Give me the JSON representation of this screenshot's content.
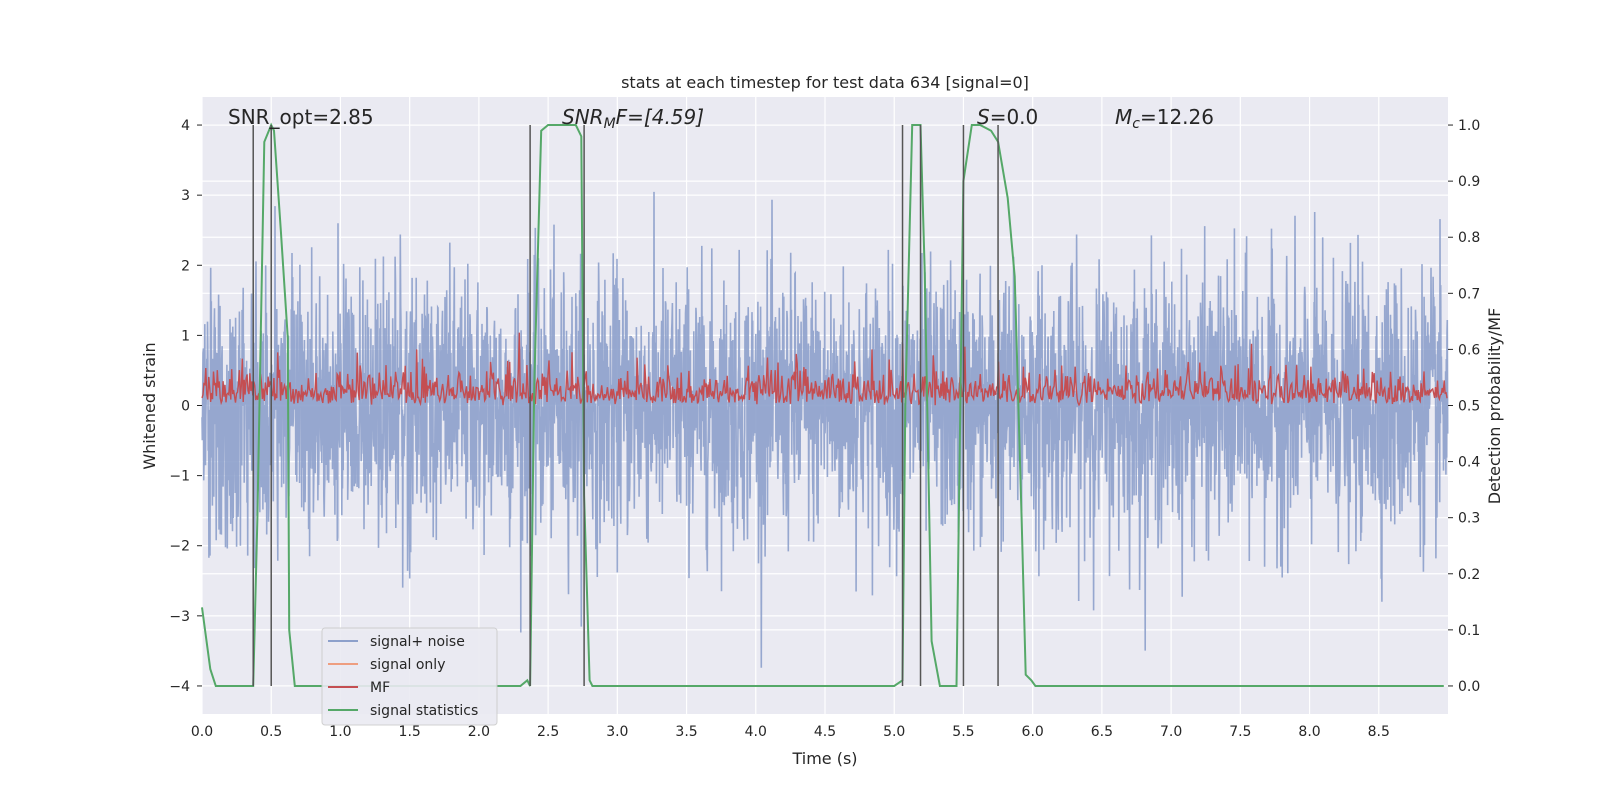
{
  "chart_data": {
    "type": "line",
    "title": "stats at each timestep for test data 634 [signal=0]",
    "xlabel": "Time (s)",
    "ylabel": "Whitened strain",
    "y2label": "Detection probability/MF",
    "xlim": [
      0.0,
      9.0
    ],
    "ylim": [
      -4.4,
      4.4
    ],
    "y2lim": [
      -0.05,
      1.05
    ],
    "xticks": [
      "0.0",
      "0.5",
      "1.0",
      "1.5",
      "2.0",
      "2.5",
      "3.0",
      "3.5",
      "4.0",
      "4.5",
      "5.0",
      "5.5",
      "6.0",
      "6.5",
      "7.0",
      "7.5",
      "8.0",
      "8.5"
    ],
    "yticks": [
      "4",
      "3",
      "2",
      "1",
      "0",
      "−1",
      "−2",
      "−3",
      "−4"
    ],
    "y2ticks": [
      "1.0",
      "0.9",
      "0.8",
      "0.7",
      "0.6",
      "0.5",
      "0.4",
      "0.3",
      "0.2",
      "0.1",
      "0.0"
    ],
    "grid": true,
    "legend_position": "lower-left",
    "annotations": {
      "snr_opt": "SNR_opt=2.85",
      "snr_mf_main": "SNR",
      "snr_mf_sub": "M",
      "snr_mf_rest": "F=[4.59]",
      "s_main": "S",
      "s_rest": "=0.0",
      "mc_main": "M",
      "mc_sub": "c",
      "mc_rest": "=12.26"
    },
    "vertical_markers": [
      0.37,
      0.5,
      2.37,
      2.76,
      5.06,
      5.19,
      5.5,
      5.75
    ],
    "series": [
      {
        "name": "signal+ noise",
        "color": "#8da0cb",
        "axis": "left",
        "noise_envelope": {
          "typical_amplitude": 1.5,
          "max_amplitude": 4.0,
          "sample_rate": 400
        }
      },
      {
        "name": "signal only",
        "color": "#ee9e80",
        "axis": "left",
        "x": [],
        "y": []
      },
      {
        "name": "MF",
        "color": "#c44e52",
        "axis": "right",
        "baseline": 0.5,
        "typical_range": [
          0.5,
          0.64
        ],
        "peaks": [
          [
            2.29,
            0.63
          ],
          [
            5.06,
            0.61
          ],
          [
            7.58,
            0.61
          ],
          [
            1.55,
            0.6
          ],
          [
            4.84,
            0.6
          ]
        ]
      },
      {
        "name": "signal statistics",
        "color": "#55a868",
        "axis": "right",
        "x": [
          0.0,
          0.06,
          0.1,
          0.37,
          0.4,
          0.45,
          0.5,
          0.52,
          0.57,
          0.62,
          0.63,
          0.67,
          2.3,
          2.35,
          2.37,
          2.4,
          2.45,
          2.5,
          2.55,
          2.7,
          2.74,
          2.76,
          2.8,
          2.82,
          2.87,
          5.0,
          5.06,
          5.08,
          5.13,
          5.19,
          5.22,
          5.27,
          5.33,
          5.45,
          5.5,
          5.56,
          5.62,
          5.7,
          5.75,
          5.82,
          5.87,
          5.92,
          5.95,
          5.99,
          6.02,
          8.97
        ],
        "y": [
          0.14,
          0.03,
          0.0,
          0.0,
          0.3,
          0.97,
          1.0,
          0.99,
          0.81,
          0.62,
          0.1,
          0.0,
          0.0,
          0.01,
          0.0,
          0.54,
          0.99,
          1.0,
          1.0,
          1.0,
          0.98,
          0.34,
          0.01,
          0.0,
          0.0,
          0.0,
          0.01,
          0.5,
          1.0,
          1.0,
          0.74,
          0.08,
          0.0,
          0.0,
          0.9,
          1.0,
          1.0,
          0.99,
          0.97,
          0.87,
          0.73,
          0.3,
          0.02,
          0.01,
          0.0,
          0.0
        ]
      }
    ]
  }
}
